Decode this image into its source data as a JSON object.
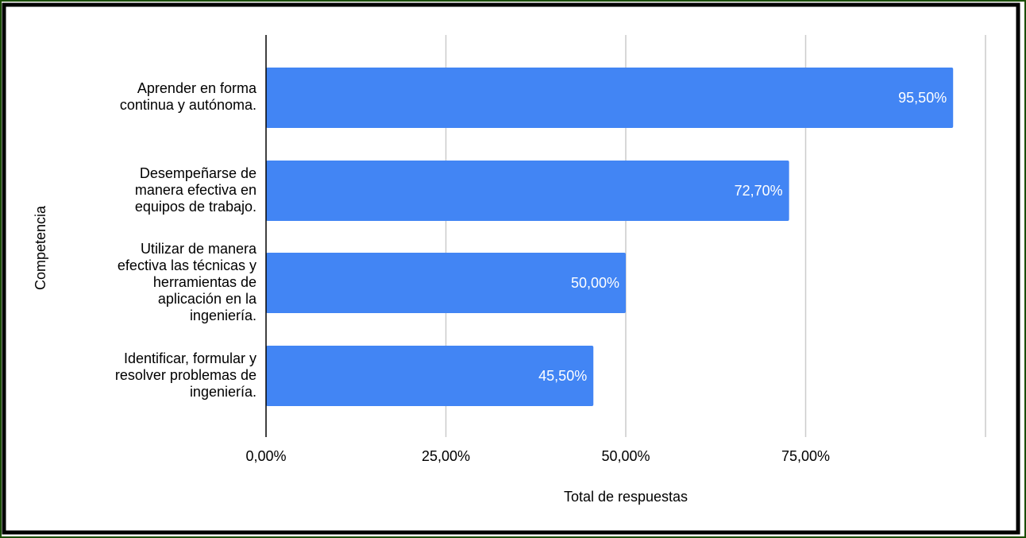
{
  "chart_data": {
    "type": "bar",
    "orientation": "horizontal",
    "title": "",
    "xlabel": "Total  de respuestas",
    "ylabel": "Competencia",
    "categories": [
      [
        "Aprender en forma",
        "continua y autónoma."
      ],
      [
        "Desempeñarse de",
        "manera efectiva en",
        "equipos de trabajo."
      ],
      [
        "Utilizar de manera",
        "efectiva las técnicas y",
        "herramientas de",
        "aplicación en la",
        "ingeniería."
      ],
      [
        "Identificar, formular y",
        "resolver problemas de",
        "ingeniería."
      ]
    ],
    "values": [
      95.5,
      72.7,
      50.0,
      45.5
    ],
    "value_labels": [
      "95,50%",
      "72,70%",
      "50,00%",
      "45,50%"
    ],
    "xlim": [
      0,
      100
    ],
    "x_ticks": [
      0,
      25,
      50,
      75,
      100
    ],
    "x_tick_labels": [
      "0,00%",
      "25,00%",
      "50,00%",
      "75,00%",
      ""
    ],
    "grid": true,
    "legend": "none",
    "colors": {
      "bar": "#4285f4",
      "grid": "#cccccc",
      "axis": "#000000",
      "frame_outer": "#1a4d00",
      "frame_inner": "#000000"
    }
  }
}
